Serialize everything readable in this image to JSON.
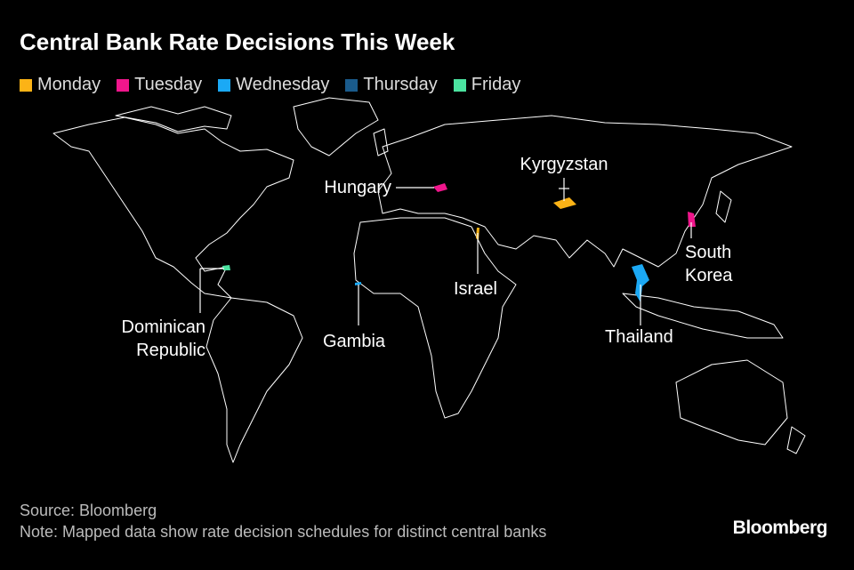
{
  "title": "Central Bank Rate Decisions This Week",
  "legend": [
    {
      "name": "Monday",
      "color": "#fcb316"
    },
    {
      "name": "Tuesday",
      "color": "#f0168c"
    },
    {
      "name": "Wednesday",
      "color": "#1ba9f5"
    },
    {
      "name": "Thursday",
      "color": "#1a5b8c"
    },
    {
      "name": "Friday",
      "color": "#4be3a0"
    }
  ],
  "countries": [
    {
      "label": "Hungary",
      "color": "#f0168c"
    },
    {
      "label": "Kyrgyzstan",
      "color": "#fcb316"
    },
    {
      "label": "South Korea",
      "color": "#f0168c"
    },
    {
      "label": "Israel",
      "color": "#fcb316"
    },
    {
      "label": "Thailand",
      "color": "#1ba9f5"
    },
    {
      "label": "Gambia",
      "color": "#1ba9f5"
    },
    {
      "label": "Dominican Republic",
      "color": "#4be3a0"
    }
  ],
  "source": "Source: Bloomberg",
  "note": "Note: Mapped data show rate decision schedules for distinct central banks",
  "brand": "Bloomberg"
}
